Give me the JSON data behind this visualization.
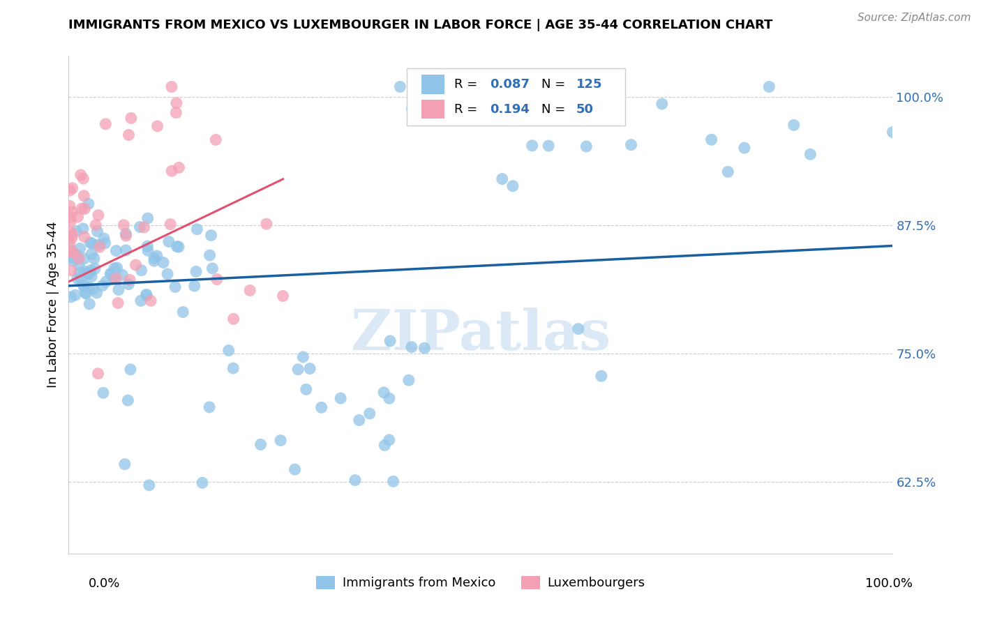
{
  "title": "IMMIGRANTS FROM MEXICO VS LUXEMBOURGER IN LABOR FORCE | AGE 35-44 CORRELATION CHART",
  "source": "Source: ZipAtlas.com",
  "ylabel": "In Labor Force | Age 35-44",
  "ytick_labels": [
    "100.0%",
    "87.5%",
    "75.0%",
    "62.5%"
  ],
  "ytick_values": [
    1.0,
    0.875,
    0.75,
    0.625
  ],
  "xlim": [
    0.0,
    1.0
  ],
  "ylim": [
    0.555,
    1.04
  ],
  "blue_color": "#90C4E8",
  "pink_color": "#F4A0B4",
  "blue_line_color": "#1A5FA0",
  "pink_line_color": "#E05070",
  "legend_R_blue": "0.087",
  "legend_N_blue": "125",
  "legend_R_pink": "0.194",
  "legend_N_pink": "50",
  "watermark": "ZIPatlas",
  "legend_color": "#2E6FB5"
}
